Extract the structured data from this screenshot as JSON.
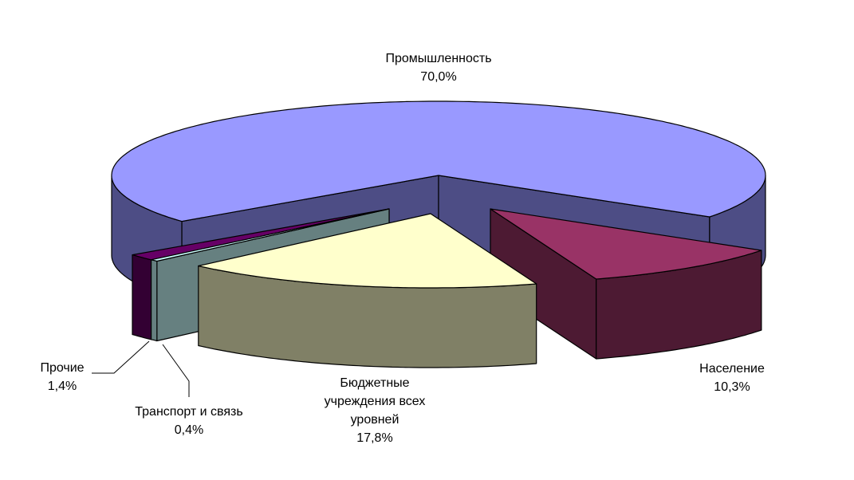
{
  "chart_data": {
    "type": "pie",
    "style": "3d-exploded",
    "title": "",
    "slices": [
      {
        "label": "Население",
        "value": 10.3,
        "value_label": "10,3%",
        "top_color": "#993366",
        "side_color": "#4d1a33"
      },
      {
        "label": "Бюджетные учреждения всех уровней",
        "label_lines": [
          "Бюджетные",
          "учреждения всех",
          "уровней"
        ],
        "value": 17.8,
        "value_label": "17,8%",
        "top_color": "#ffffcc",
        "side_color": "#808066"
      },
      {
        "label": "Транспорт и связь",
        "value": 0.4,
        "value_label": "0,4%",
        "top_color": "#ccffff",
        "side_color": "#668080"
      },
      {
        "label": "Прочие",
        "value": 1.4,
        "value_label": "1,4%",
        "top_color": "#660066",
        "side_color": "#330033"
      },
      {
        "label": "Промышленность",
        "value": 70.0,
        "value_label": "70,0%",
        "top_color": "#9999ff",
        "side_color": "#4d4d85"
      }
    ]
  }
}
